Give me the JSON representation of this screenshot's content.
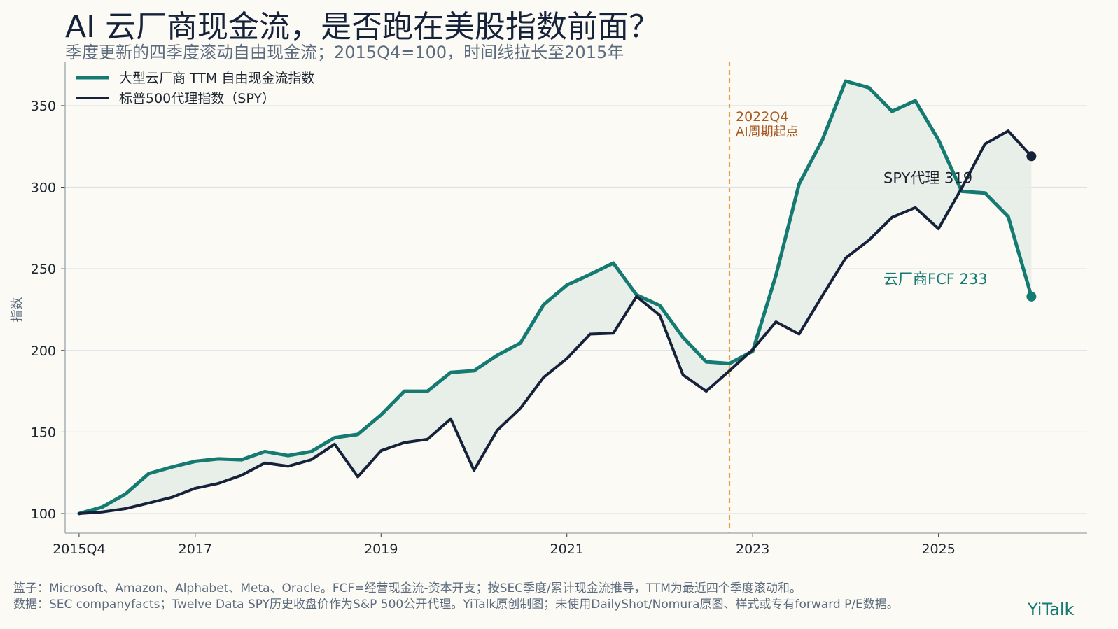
{
  "header": {
    "title": "AI 云厂商现金流，是否跑在美股指数前面？",
    "subtitle": "季度更新的四季度滚动自由现金流；2015Q4=100，时间线拉长至2015年"
  },
  "footer": {
    "note1": "篮子：Microsoft、Amazon、Alphabet、Meta、Oracle。FCF=经营现金流-资本开支；按SEC季度/累计现金流推导，TTM为最近四个季度滚动和。",
    "note2": "数据：SEC companyfacts；Twelve Data SPY历史收盘价作为S&P 500公开代理。YiTalk原创制图；未使用DailyShot/Nomura原图、样式或专有forward P/E数据。",
    "brand": "YiTalk"
  },
  "colors": {
    "fcf": "#157a72",
    "spy": "#16213a",
    "fill": "#e6ede8",
    "marker": "#e0a14a",
    "marker_text": "#a8581e",
    "grid": "#dde2e8",
    "axis": "#9aa3ad"
  },
  "chart_data": {
    "type": "line",
    "ylabel": "指数",
    "ylim": [
      88,
      377
    ],
    "xlim": [
      2015.6,
      2026.6
    ],
    "yticks": [
      100,
      150,
      200,
      250,
      300,
      350
    ],
    "xticks": [
      {
        "value": 2015.75,
        "label": "2015Q4"
      },
      {
        "value": 2017,
        "label": "2017"
      },
      {
        "value": 2019,
        "label": "2019"
      },
      {
        "value": 2021,
        "label": "2021"
      },
      {
        "value": 2023,
        "label": "2023"
      },
      {
        "value": 2025,
        "label": "2025"
      }
    ],
    "x": [
      2015.75,
      2016.0,
      2016.25,
      2016.5,
      2016.75,
      2017.0,
      2017.25,
      2017.5,
      2017.75,
      2018.0,
      2018.25,
      2018.5,
      2018.75,
      2019.0,
      2019.25,
      2019.5,
      2019.75,
      2020.0,
      2020.25,
      2020.5,
      2020.75,
      2021.0,
      2021.25,
      2021.5,
      2021.75,
      2022.0,
      2022.25,
      2022.5,
      2022.75,
      2023.0,
      2023.25,
      2023.5,
      2023.75,
      2024.0,
      2024.25,
      2024.5,
      2024.75,
      2025.0,
      2025.25,
      2025.5,
      2025.75,
      2026.0
    ],
    "series": [
      {
        "name": "大型云厂商 TTM 自由现金流指数",
        "key": "fcf",
        "values": [
          100,
          104,
          112,
          124.5,
          128.5,
          132,
          133.5,
          133,
          138,
          135.5,
          138,
          146.5,
          148.5,
          160.5,
          175,
          175,
          186.5,
          187.5,
          197,
          204.5,
          228,
          240,
          246.5,
          253.5,
          234,
          227.5,
          208,
          193,
          192,
          199.5,
          246,
          302,
          329,
          365,
          361,
          346.5,
          353,
          329,
          297.5,
          296.5,
          282,
          233
        ],
        "end_label": "云厂商FCF 233"
      },
      {
        "name": "标普500代理指数（SPY）",
        "key": "spy",
        "values": [
          100,
          101,
          103,
          106.5,
          110,
          115.5,
          118.5,
          123.5,
          131,
          129,
          133,
          142.5,
          122.5,
          138.5,
          143.5,
          145.5,
          158,
          126.5,
          151,
          164.5,
          183.5,
          195,
          210,
          210.5,
          233,
          221.5,
          185,
          175,
          187.5,
          200.5,
          217.5,
          210,
          233.5,
          256.5,
          267.5,
          281.5,
          287.5,
          274.5,
          299.5,
          326.5,
          334.5,
          319
        ],
        "end_label": "SPY代理 319"
      }
    ],
    "annotations": [
      {
        "x": 2022.75,
        "line1": "2022Q4",
        "line2": "AI周期起点"
      }
    ],
    "legend": "top-left",
    "grid": "horizontal"
  }
}
